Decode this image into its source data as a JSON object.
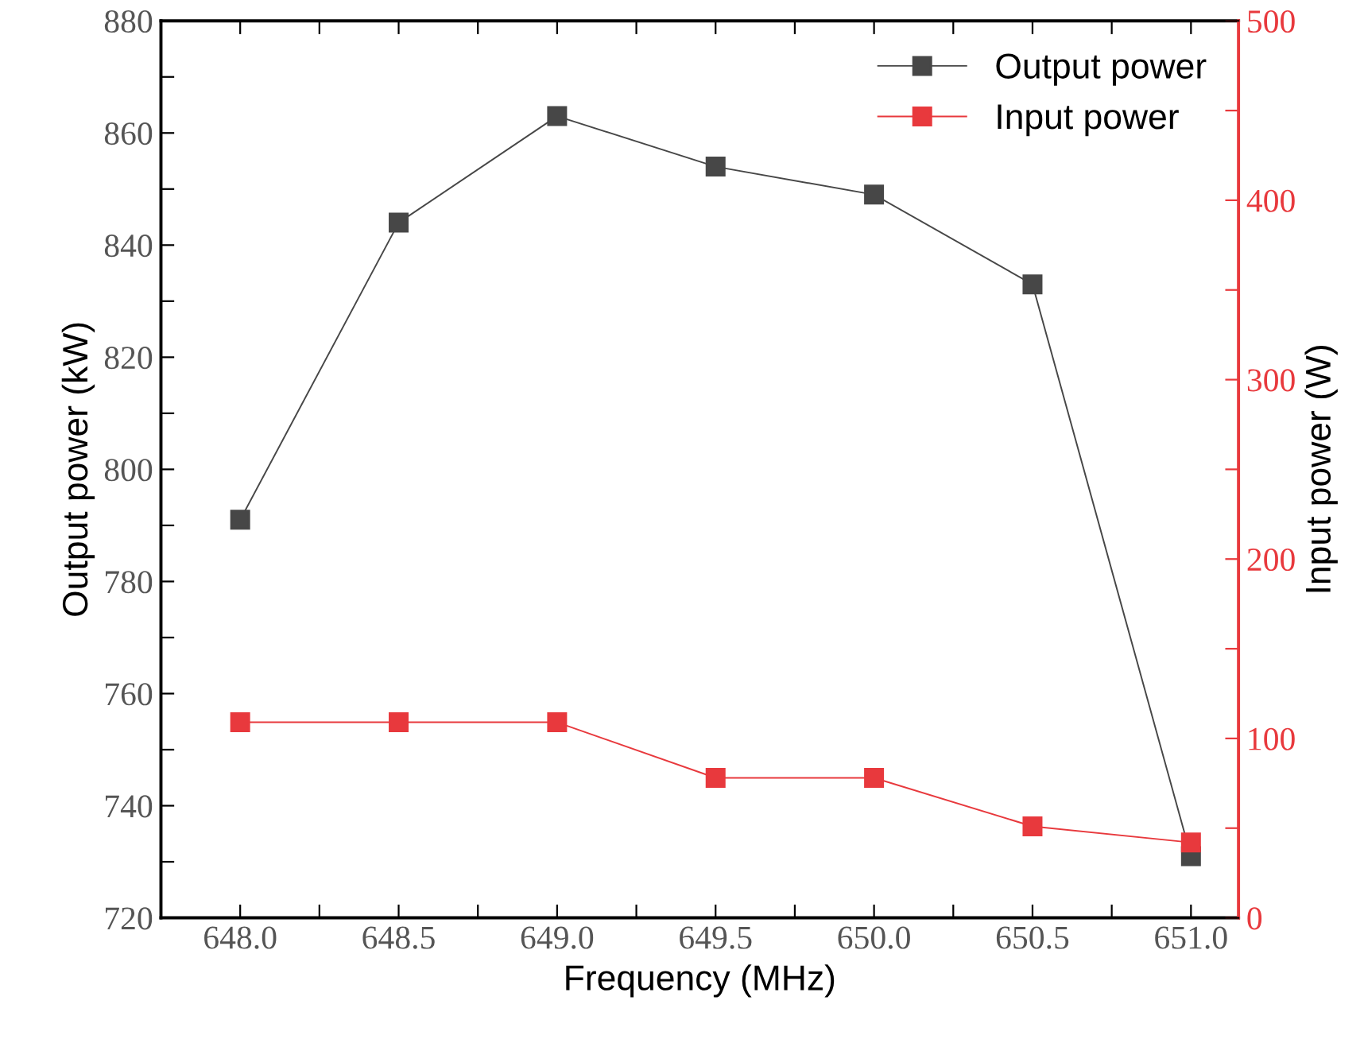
{
  "chart_data": {
    "type": "line",
    "x": [
      648.0,
      648.5,
      649.0,
      649.5,
      650.0,
      650.5,
      651.0
    ],
    "xlabel": "Frequency (MHz)",
    "ylabel": "Output power (kW)",
    "y2label": "Input power (W)",
    "series": [
      {
        "name": "Output power",
        "color": "#474747",
        "values": [
          791,
          844,
          863,
          854,
          849,
          833,
          731
        ]
      },
      {
        "name": "Input power",
        "color": "#e8393d",
        "axis": "y2",
        "values": [
          109,
          109,
          109,
          78,
          78,
          51,
          42
        ]
      }
    ],
    "xlim": [
      647.75,
      651.15
    ],
    "xticks": [
      {
        "value": 648.0,
        "label": "648.0"
      },
      {
        "value": 648.25,
        "label": null
      },
      {
        "value": 648.5,
        "label": "648.5"
      },
      {
        "value": 648.75,
        "label": null
      },
      {
        "value": 649.0,
        "label": "649.0"
      },
      {
        "value": 649.25,
        "label": null
      },
      {
        "value": 649.5,
        "label": "649.5"
      },
      {
        "value": 649.75,
        "label": null
      },
      {
        "value": 650.0,
        "label": "650.0"
      },
      {
        "value": 650.25,
        "label": null
      },
      {
        "value": 650.5,
        "label": "650.5"
      },
      {
        "value": 650.75,
        "label": null
      },
      {
        "value": 651.0,
        "label": "651.0"
      }
    ],
    "ylim": [
      720,
      880
    ],
    "yticks": [
      720,
      {
        "value": 730,
        "label": null
      },
      740,
      {
        "value": 750,
        "label": null
      },
      760,
      {
        "value": 770,
        "label": null
      },
      780,
      {
        "value": 790,
        "label": null
      },
      800,
      {
        "value": 810,
        "label": null
      },
      820,
      {
        "value": 830,
        "label": null
      },
      840,
      {
        "value": 850,
        "label": null
      },
      860,
      {
        "value": 870,
        "label": null
      },
      880
    ],
    "y2lim": [
      0,
      500
    ],
    "y2ticks": [
      0,
      {
        "value": 50,
        "label": null
      },
      100,
      {
        "value": 150,
        "label": null
      },
      200,
      {
        "value": 250,
        "label": null
      },
      300,
      {
        "value": 350,
        "label": null
      },
      400,
      {
        "value": 450,
        "label": null
      },
      500
    ],
    "marker": "square",
    "line_style": "solid",
    "grid": false,
    "legend": "top right"
  }
}
